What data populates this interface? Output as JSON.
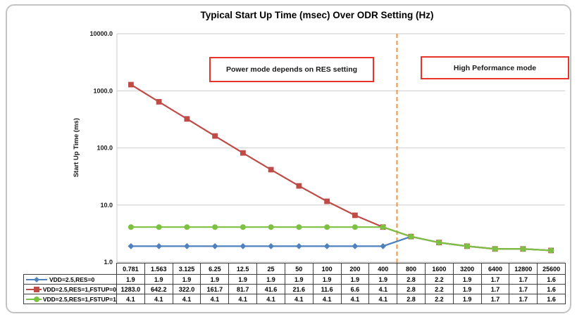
{
  "figure": {
    "background": "#ffffff",
    "frame_color": "#c3c3c3"
  },
  "chart_data": {
    "type": "line",
    "title": "Typical Start Up Time (msec) Over ODR Setting (Hz)",
    "ylabel": "Start Up Time (ms)",
    "xlabel": "",
    "y_scale": "log",
    "ylim": [
      1,
      10000
    ],
    "grid": "horizontal",
    "legend_position": "table-left",
    "y_ticks": [
      {
        "value": 10000,
        "label": "10000.0"
      },
      {
        "value": 1000,
        "label": "1000.0"
      },
      {
        "value": 100,
        "label": "100.0"
      },
      {
        "value": 10,
        "label": "10.0"
      },
      {
        "value": 1,
        "label": "1.0"
      }
    ],
    "categories": [
      "0.781",
      "1.563",
      "3.125",
      "6.25",
      "12.5",
      "25",
      "50",
      "100",
      "200",
      "400",
      "800",
      "1600",
      "3200",
      "6400",
      "12800",
      "25600"
    ],
    "series": [
      {
        "name": "VDD=2.5,RES=0",
        "color": "#4f81bd",
        "marker": "diamond",
        "values": [
          1.9,
          1.9,
          1.9,
          1.9,
          1.9,
          1.9,
          1.9,
          1.9,
          1.9,
          1.9,
          2.8,
          2.2,
          1.9,
          1.7,
          1.7,
          1.6
        ]
      },
      {
        "name": "VDD=2.5,RES=1,FSTUP=0",
        "color": "#bf4b47",
        "marker": "square",
        "values": [
          1283.0,
          642.2,
          322.0,
          161.7,
          81.7,
          41.6,
          21.6,
          11.6,
          6.6,
          4.1,
          2.8,
          2.2,
          1.9,
          1.7,
          1.7,
          1.6
        ]
      },
      {
        "name": "VDD=2.5,RES=1,FSTUP=1",
        "color": "#7dc142",
        "marker": "circle",
        "values": [
          4.1,
          4.1,
          4.1,
          4.1,
          4.1,
          4.1,
          4.1,
          4.1,
          4.1,
          4.1,
          2.8,
          2.2,
          1.9,
          1.7,
          1.7,
          1.6
        ]
      }
    ],
    "annotations": [
      {
        "text": "Power mode depends on RES setting",
        "border_color": "#e5342b"
      },
      {
        "text": "High Peformance mode",
        "border_color": "#e5342b"
      }
    ],
    "divider": {
      "style": "dashed",
      "color": "#f0953f",
      "boundary_index": 10
    },
    "value_decimals": 1
  }
}
